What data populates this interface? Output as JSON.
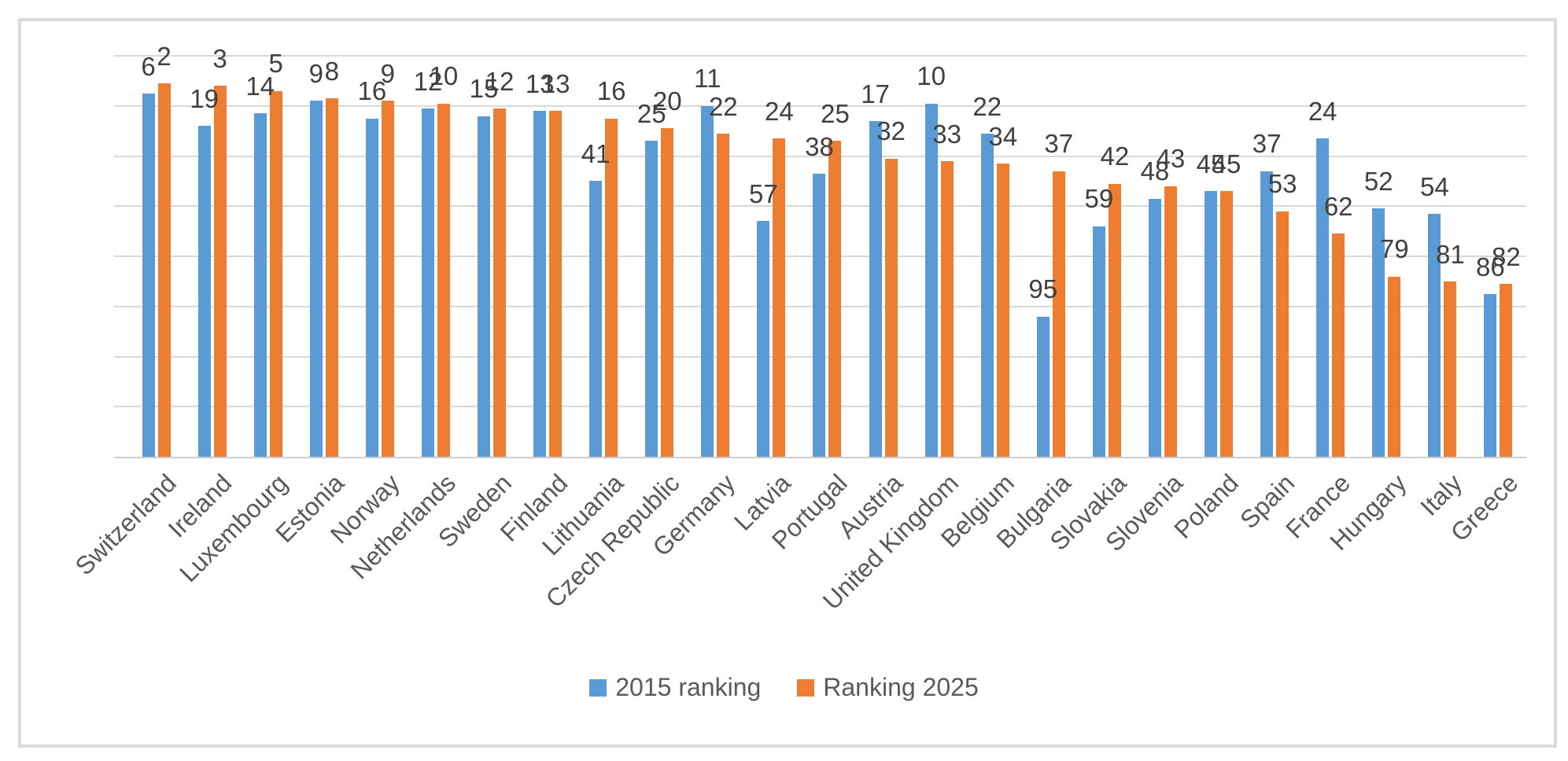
{
  "chart_data": {
    "type": "bar",
    "title": "",
    "categories": [
      "Switzerland",
      "Ireland",
      "Luxembourg",
      "Estonia",
      "Norway",
      "Netherlands",
      "Sweden",
      "Finland",
      "Lithuania",
      "Czech Republic",
      "Germany",
      "Latvia",
      "Portugal",
      "Austria",
      "United Kingdom",
      "Belgium",
      "Bulgaria",
      "Slovakia",
      "Slovenia",
      "Poland",
      "Spain",
      "France",
      "Hungary",
      "Italy",
      "Greece"
    ],
    "series": [
      {
        "name": "2015 ranking",
        "color": "#5B9BD5",
        "values": [
          6,
          19,
          14,
          9,
          16,
          12,
          15,
          13,
          41,
          25,
          11,
          57,
          38,
          17,
          10,
          22,
          95,
          59,
          48,
          45,
          37,
          24,
          52,
          54,
          86
        ]
      },
      {
        "name": "Ranking 2025",
        "color": "#ED7D31",
        "values": [
          2,
          3,
          5,
          8,
          9,
          10,
          12,
          13,
          16,
          20,
          22,
          24,
          25,
          32,
          33,
          34,
          37,
          42,
          43,
          45,
          53,
          62,
          79,
          81,
          82
        ]
      }
    ],
    "value_semantics": "country rank (lower number = better = taller bar)",
    "layout": {
      "bar_height_units_formula": "151 - rank",
      "units_axis_max": 160,
      "gridline_every_units": 20,
      "y_tick_labels": "none",
      "x_label_rotation_deg": 45,
      "legend_position": "bottom-center",
      "data_labels": "outside-end"
    },
    "colors": {
      "series_2015": "#5B9BD5",
      "series_2025": "#ED7D31",
      "gridline": "#D9D9D9",
      "axis_line": "#CFCFCF",
      "data_label_text": "#404040",
      "axis_text": "#595959",
      "frame_border": "#DADADA"
    }
  }
}
